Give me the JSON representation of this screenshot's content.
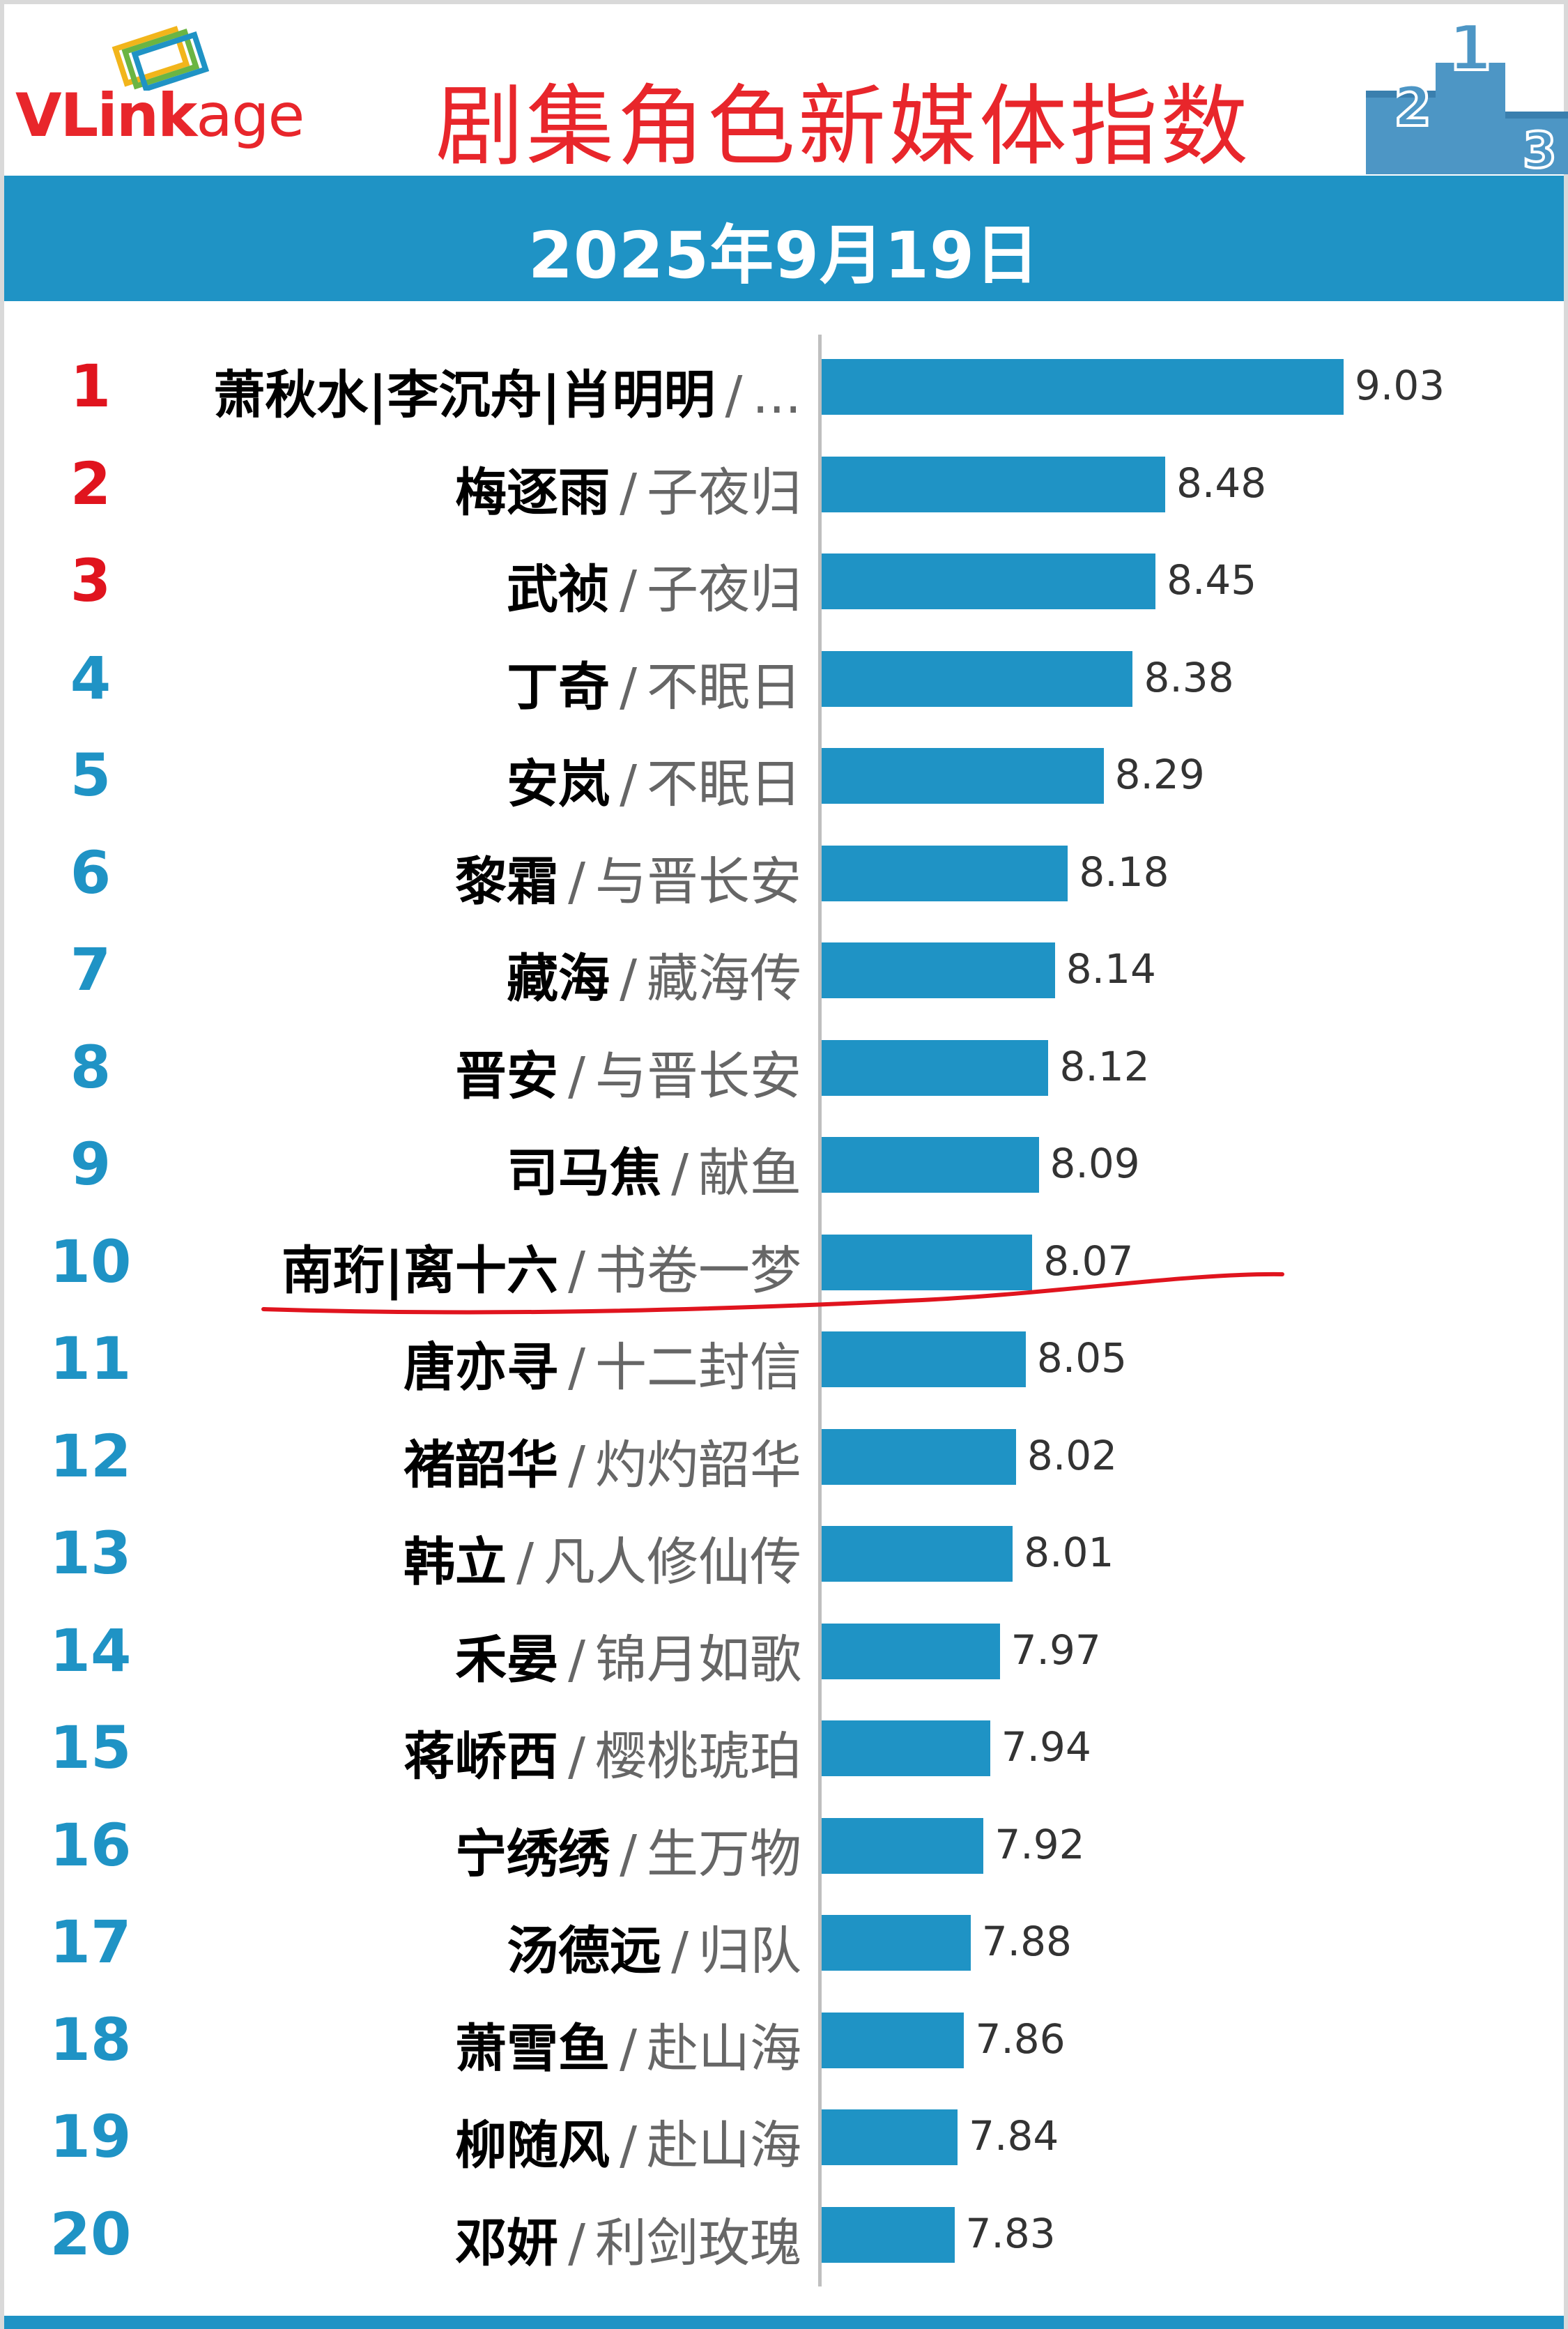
{
  "header": {
    "logo_main": "VLink",
    "logo_suffix": "age",
    "title": "剧集角色新媒体指数",
    "date": "2025年9月19日",
    "podium_labels": [
      "2",
      "1",
      "3"
    ]
  },
  "colors": {
    "accent": "#1f93c5",
    "title_red": "#e8262b",
    "top3_rank": "#e0141e",
    "rank_blue": "#1f93c5",
    "underline": "#e0141e"
  },
  "icons": [
    "vlinkage-logo-icon",
    "podium-icon"
  ],
  "chart_data": {
    "type": "bar",
    "orientation": "horizontal",
    "title": "剧集角色新媒体指数",
    "xlim": [
      0,
      9.03
    ],
    "rows": [
      {
        "rank": "1",
        "name": "萧秋水|李沉舟|肖明明",
        "drama": "...",
        "value": 9.03
      },
      {
        "rank": "2",
        "name": "梅逐雨",
        "drama": "子夜归",
        "value": 8.48
      },
      {
        "rank": "3",
        "name": "武祯",
        "drama": "子夜归",
        "value": 8.45
      },
      {
        "rank": "4",
        "name": "丁奇",
        "drama": "不眠日",
        "value": 8.38
      },
      {
        "rank": "5",
        "name": "安岚",
        "drama": "不眠日",
        "value": 8.29
      },
      {
        "rank": "6",
        "name": "黎霜",
        "drama": "与晋长安",
        "value": 8.18
      },
      {
        "rank": "7",
        "name": "藏海",
        "drama": "藏海传",
        "value": 8.14
      },
      {
        "rank": "8",
        "name": "晋安",
        "drama": "与晋长安",
        "value": 8.12
      },
      {
        "rank": "9",
        "name": "司马焦",
        "drama": "献鱼",
        "value": 8.09
      },
      {
        "rank": "10",
        "name": "南珩|离十六",
        "drama": "书卷一梦",
        "value": 8.07
      },
      {
        "rank": "11",
        "name": "唐亦寻",
        "drama": "十二封信",
        "value": 8.05
      },
      {
        "rank": "12",
        "name": "褚韶华",
        "drama": "灼灼韶华",
        "value": 8.02
      },
      {
        "rank": "13",
        "name": "韩立",
        "drama": "凡人修仙传",
        "value": 8.01
      },
      {
        "rank": "14",
        "name": "禾晏",
        "drama": "锦月如歌",
        "value": 7.97
      },
      {
        "rank": "15",
        "name": "蒋峤西",
        "drama": "樱桃琥珀",
        "value": 7.94
      },
      {
        "rank": "16",
        "name": "宁绣绣",
        "drama": "生万物",
        "value": 7.92
      },
      {
        "rank": "17",
        "name": "汤德远",
        "drama": "归队",
        "value": 7.88
      },
      {
        "rank": "18",
        "name": "萧雪鱼",
        "drama": "赴山海",
        "value": 7.86
      },
      {
        "rank": "19",
        "name": "柳随风",
        "drama": "赴山海",
        "value": 7.84
      },
      {
        "rank": "20",
        "name": "邓妍",
        "drama": "利剑玫瑰",
        "value": 7.83
      }
    ],
    "annotation": {
      "kind": "hand-drawn-underline",
      "under_rank": "10"
    }
  }
}
